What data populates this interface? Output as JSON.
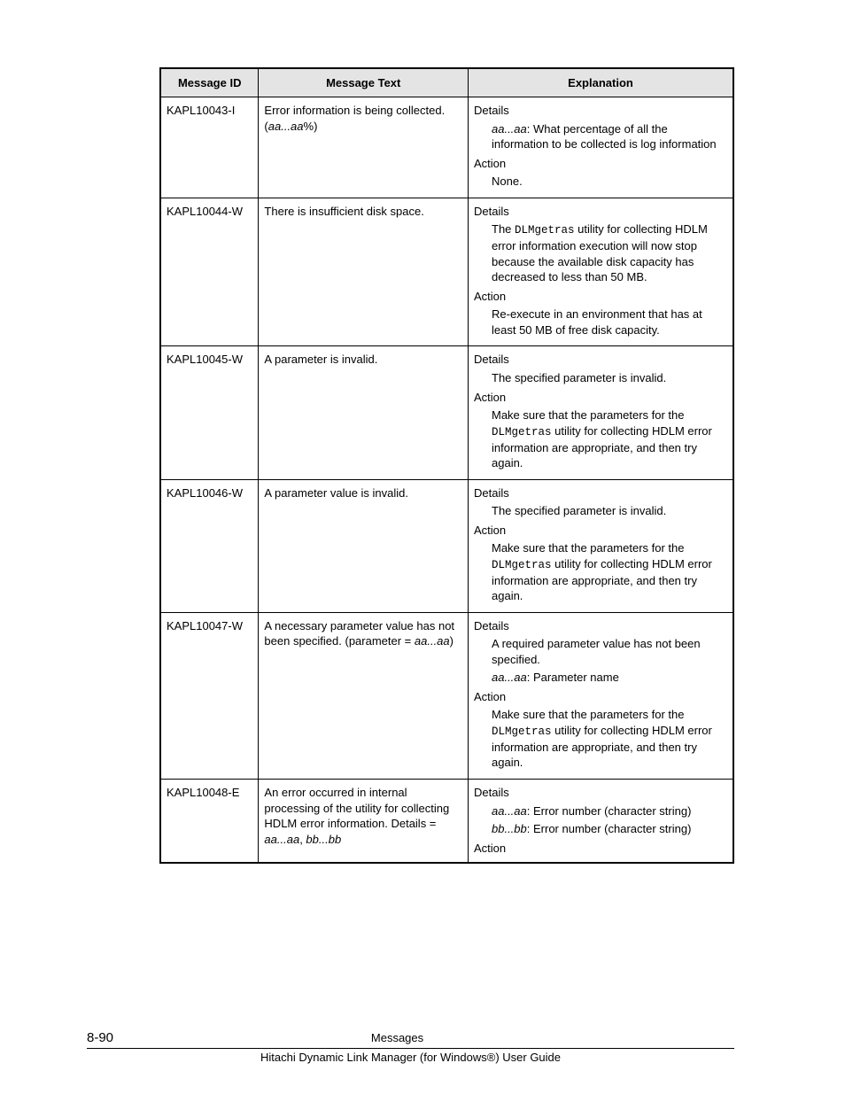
{
  "table": {
    "headers": [
      "Message ID",
      "Message Text",
      "Explanation"
    ],
    "rows": [
      {
        "id": "KAPL10043-I",
        "text_pre": "Error information is being collected. (",
        "text_italic": "aa...aa",
        "text_post": "%)",
        "details_label": "Details",
        "details_body_italic": "aa...aa",
        "details_body_rest": ": What percentage of all the information to be collected is log information",
        "action_label": "Action",
        "action_body": "None."
      },
      {
        "id": "KAPL10044-W",
        "text": "There is insufficient disk space.",
        "details_label": "Details",
        "details_pre": "The ",
        "details_mono": "DLMgetras",
        "details_post": " utility for collecting HDLM error information execution will now stop because the available disk capacity has decreased to less than 50 MB.",
        "action_label": "Action",
        "action_body": "Re-execute in an environment that has at least 50 MB of free disk capacity."
      },
      {
        "id": "KAPL10045-W",
        "text": "A parameter is invalid.",
        "details_label": "Details",
        "details_body": "The specified parameter is invalid.",
        "action_label": "Action",
        "action_pre": "Make sure that the parameters for the ",
        "action_mono": "DLMgetras",
        "action_post": " utility for collecting HDLM error information are appropriate, and then try again."
      },
      {
        "id": "KAPL10046-W",
        "text": "A parameter value is invalid.",
        "details_label": "Details",
        "details_body": "The specified parameter is invalid.",
        "action_label": "Action",
        "action_pre": "Make sure that the parameters for the ",
        "action_mono": "DLMgetras",
        "action_post": " utility for collecting HDLM error information are appropriate, and then try again."
      },
      {
        "id": "KAPL10047-W",
        "text_pre": "A necessary parameter value has not been specified. (parameter = ",
        "text_italic": "aa...aa",
        "text_post": ")",
        "details_label": "Details",
        "details_body1": "A required parameter value has not been specified.",
        "details_body2_italic": "aa...aa",
        "details_body2_rest": ": Parameter name",
        "action_label": "Action",
        "action_pre": "Make sure that the parameters for the ",
        "action_mono": "DLMgetras",
        "action_post": " utility for collecting HDLM error information are appropriate, and then try again."
      },
      {
        "id": "KAPL10048-E",
        "text_pre": "An error occurred in internal processing of the utility for collecting HDLM error information. Details = ",
        "text_italic1": "aa...aa",
        "text_mid": ", ",
        "text_italic2": "bb...bb",
        "details_label": "Details",
        "details_body1_italic": "aa...aa",
        "details_body1_rest": ": Error number (character string)",
        "details_body2_italic": "bb...bb",
        "details_body2_rest": ": Error number (character string)",
        "action_label": "Action"
      }
    ]
  },
  "footer": {
    "page_num": "8-90",
    "title": "Messages",
    "subtitle": "Hitachi Dynamic Link Manager (for Windows®) User Guide"
  }
}
